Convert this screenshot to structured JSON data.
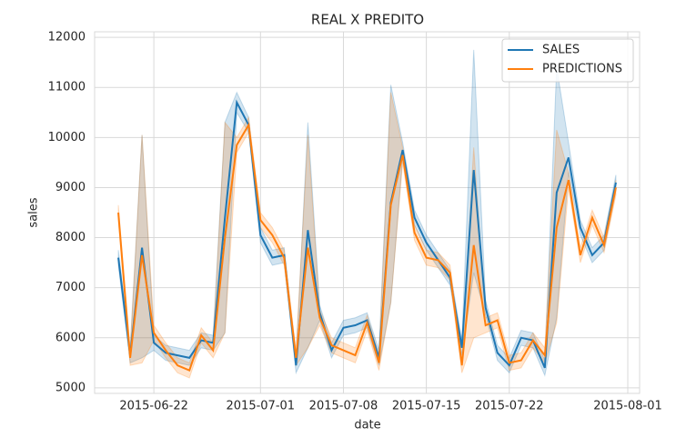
{
  "chart_data": {
    "type": "line",
    "title": "REAL X PREDITO",
    "x_label": "date",
    "y_label": "sales",
    "x": [
      "2015-06-19",
      "2015-06-20",
      "2015-06-21",
      "2015-06-22",
      "2015-06-23",
      "2015-06-24",
      "2015-06-25",
      "2015-06-26",
      "2015-06-27",
      "2015-06-28",
      "2015-06-29",
      "2015-06-30",
      "2015-07-01",
      "2015-07-02",
      "2015-07-03",
      "2015-07-04",
      "2015-07-05",
      "2015-07-06",
      "2015-07-07",
      "2015-07-08",
      "2015-07-09",
      "2015-07-10",
      "2015-07-11",
      "2015-07-12",
      "2015-07-13",
      "2015-07-14",
      "2015-07-15",
      "2015-07-16",
      "2015-07-17",
      "2015-07-18",
      "2015-07-19",
      "2015-07-20",
      "2015-07-21",
      "2015-07-22",
      "2015-07-23",
      "2015-07-24",
      "2015-07-25",
      "2015-07-26",
      "2015-07-27",
      "2015-07-28",
      "2015-07-29",
      "2015-07-30",
      "2015-07-31"
    ],
    "series": [
      {
        "name": "SALES",
        "color": "#1f77b4",
        "values": [
          7600,
          5650,
          7800,
          5900,
          5700,
          5650,
          5600,
          5950,
          5900,
          8400,
          10700,
          10250,
          8050,
          7600,
          7650,
          5450,
          8150,
          6500,
          5750,
          6200,
          6250,
          6350,
          5600,
          8700,
          9750,
          8400,
          7900,
          7550,
          7200,
          5800,
          9350,
          6600,
          5700,
          5450,
          6000,
          5950,
          5400,
          8900,
          9600,
          8200,
          7650,
          7900,
          9100
        ],
        "lower": [
          7450,
          5500,
          5600,
          5750,
          5550,
          5500,
          5450,
          5800,
          5750,
          6100,
          10500,
          10100,
          7900,
          7450,
          7500,
          5300,
          5800,
          6350,
          5600,
          6050,
          6100,
          6200,
          5450,
          6700,
          9600,
          8250,
          7750,
          7400,
          7050,
          5650,
          7300,
          6450,
          5550,
          5300,
          5850,
          5800,
          5250,
          6400,
          9300,
          8050,
          7500,
          7750,
          8950
        ],
        "upper": [
          7750,
          5800,
          10050,
          6050,
          5850,
          5800,
          5750,
          6100,
          6050,
          10300,
          10900,
          10400,
          8200,
          7750,
          7800,
          5600,
          10300,
          6650,
          5900,
          6350,
          6400,
          6500,
          5750,
          11050,
          9900,
          8550,
          8050,
          7700,
          7350,
          5950,
          11750,
          6750,
          5850,
          5600,
          6150,
          6100,
          5550,
          11400,
          9900,
          8350,
          7800,
          8050,
          9250
        ]
      },
      {
        "name": "PREDICTIONS",
        "color": "#ff7f0e",
        "values": [
          8500,
          5600,
          7650,
          6100,
          5750,
          5450,
          5350,
          6050,
          5750,
          8000,
          9850,
          10250,
          8350,
          8050,
          7600,
          5600,
          7800,
          6400,
          5850,
          5750,
          5650,
          6300,
          5500,
          8650,
          9650,
          8100,
          7600,
          7550,
          7300,
          5450,
          7850,
          6250,
          6350,
          5500,
          5550,
          5950,
          5650,
          8200,
          9150,
          7650,
          8400,
          7850,
          9000
        ],
        "lower": [
          8350,
          5450,
          5500,
          5950,
          5600,
          5300,
          5200,
          5900,
          5600,
          6100,
          9700,
          10100,
          8200,
          7900,
          7450,
          5450,
          5800,
          6250,
          5700,
          5600,
          5500,
          6150,
          5350,
          6700,
          9500,
          7950,
          7450,
          7400,
          7150,
          5300,
          6000,
          6100,
          6200,
          5350,
          5400,
          5800,
          5500,
          6300,
          9000,
          7500,
          8250,
          7700,
          8850
        ],
        "upper": [
          8650,
          5750,
          10050,
          6250,
          5900,
          5600,
          5500,
          6200,
          5900,
          10300,
          10000,
          10400,
          8500,
          8200,
          7750,
          5750,
          10050,
          6550,
          6000,
          5900,
          5800,
          6450,
          5650,
          10900,
          9800,
          8250,
          7750,
          7700,
          7450,
          5600,
          9800,
          6400,
          6500,
          5650,
          5700,
          6100,
          5800,
          10150,
          9300,
          7800,
          8550,
          8000,
          9150
        ]
      }
    ],
    "xlim": [
      "2015-06-17",
      "2015-08-02"
    ],
    "xticks": [
      "2015-06-22",
      "2015-07-01",
      "2015-07-08",
      "2015-07-15",
      "2015-07-22",
      "2015-08-01"
    ],
    "ylim": [
      4890,
      12110
    ],
    "yticks": [
      5000,
      6000,
      7000,
      8000,
      9000,
      10000,
      11000,
      12000
    ],
    "grid": true,
    "legend": "upper right"
  }
}
